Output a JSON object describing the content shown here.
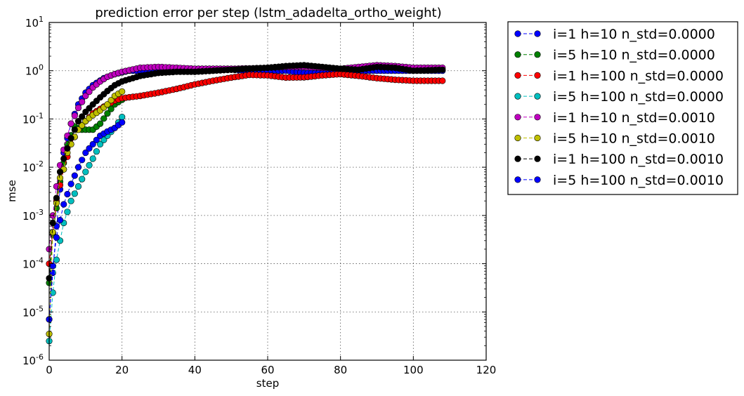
{
  "chart_data": {
    "type": "line",
    "title": "prediction error per step (lstm_adadelta_ortho_weight)",
    "xlabel": "step",
    "ylabel": "mse",
    "xlim": [
      0,
      120
    ],
    "ylim": [
      1e-06,
      10
    ],
    "yscale": "log",
    "grid": true,
    "legend_position": "outside-right",
    "x_ticks": [
      "0",
      "20",
      "40",
      "60",
      "80",
      "100",
      "120"
    ],
    "y_ticks": [
      {
        "base": "10",
        "exp": "1"
      },
      {
        "base": "10",
        "exp": "0"
      },
      {
        "base": "10",
        "exp": "-1"
      },
      {
        "base": "10",
        "exp": "-2"
      },
      {
        "base": "10",
        "exp": "-3"
      },
      {
        "base": "10",
        "exp": "-4"
      },
      {
        "base": "10",
        "exp": "-5"
      },
      {
        "base": "10",
        "exp": "-6"
      }
    ],
    "series": [
      {
        "name": "i=1 h=10 n_std=0.0000",
        "color": "#0000ff",
        "marker": "circle",
        "linestyle": "dashed",
        "n": 109,
        "keypoints": [
          [
            0,
            7e-06
          ],
          [
            2,
            0.0006
          ],
          [
            4,
            0.02
          ],
          [
            6,
            0.08
          ],
          [
            8,
            0.2
          ],
          [
            10,
            0.35
          ],
          [
            12,
            0.5
          ],
          [
            15,
            0.7
          ],
          [
            18,
            0.85
          ],
          [
            22,
            1.0
          ],
          [
            26,
            1.0
          ],
          [
            30,
            1.0
          ],
          [
            35,
            1.0
          ],
          [
            40,
            0.95
          ],
          [
            45,
            1.0
          ],
          [
            50,
            1.05
          ],
          [
            55,
            1.0
          ],
          [
            60,
            1.0
          ],
          [
            65,
            1.0
          ],
          [
            70,
            0.9
          ],
          [
            75,
            0.9
          ],
          [
            80,
            1.0
          ],
          [
            85,
            1.0
          ],
          [
            90,
            1.0
          ],
          [
            95,
            1.0
          ],
          [
            100,
            1.0
          ],
          [
            108,
            1.0
          ]
        ]
      },
      {
        "name": "i=5 h=10 n_std=0.0000",
        "color": "#008000",
        "marker": "circle",
        "linestyle": "dashed",
        "n": 21,
        "keypoints": [
          [
            0,
            4e-05
          ],
          [
            1,
            0.0004
          ],
          [
            3,
            0.005
          ],
          [
            5,
            0.03
          ],
          [
            7,
            0.07
          ],
          [
            9,
            0.06
          ],
          [
            11,
            0.06
          ],
          [
            12,
            0.06
          ],
          [
            14,
            0.08
          ],
          [
            16,
            0.13
          ],
          [
            18,
            0.2
          ],
          [
            20,
            0.25
          ]
        ]
      },
      {
        "name": "i=1 h=100 n_std=0.0000",
        "color": "#ff0000",
        "marker": "circle",
        "linestyle": "dashed",
        "n": 109,
        "keypoints": [
          [
            0,
            0.0001
          ],
          [
            2,
            0.002
          ],
          [
            4,
            0.009
          ],
          [
            6,
            0.03
          ],
          [
            8,
            0.06
          ],
          [
            10,
            0.09
          ],
          [
            12,
            0.13
          ],
          [
            15,
            0.18
          ],
          [
            18,
            0.24
          ],
          [
            20,
            0.27
          ],
          [
            25,
            0.3
          ],
          [
            30,
            0.35
          ],
          [
            35,
            0.42
          ],
          [
            40,
            0.52
          ],
          [
            45,
            0.62
          ],
          [
            50,
            0.72
          ],
          [
            55,
            0.82
          ],
          [
            60,
            0.8
          ],
          [
            65,
            0.72
          ],
          [
            70,
            0.73
          ],
          [
            75,
            0.8
          ],
          [
            80,
            0.85
          ],
          [
            85,
            0.78
          ],
          [
            90,
            0.7
          ],
          [
            95,
            0.65
          ],
          [
            100,
            0.62
          ],
          [
            108,
            0.62
          ]
        ]
      },
      {
        "name": "i=5 h=100 n_std=0.0000",
        "color": "#00bfbf",
        "marker": "circle",
        "linestyle": "dashed",
        "n": 21,
        "keypoints": [
          [
            0,
            2.5e-06
          ],
          [
            1,
            2.5e-05
          ],
          [
            2,
            0.00012
          ],
          [
            3,
            0.0003
          ],
          [
            4,
            0.0007
          ],
          [
            6,
            0.002
          ],
          [
            8,
            0.004
          ],
          [
            10,
            0.008
          ],
          [
            12,
            0.015
          ],
          [
            14,
            0.03
          ],
          [
            16,
            0.045
          ],
          [
            18,
            0.065
          ],
          [
            20,
            0.11
          ]
        ]
      },
      {
        "name": "i=1 h=10 n_std=0.0010",
        "color": "#bf00bf",
        "marker": "circle",
        "linestyle": "dashed",
        "n": 109,
        "keypoints": [
          [
            0,
            0.0002
          ],
          [
            1,
            0.001
          ],
          [
            2,
            0.004
          ],
          [
            3,
            0.011
          ],
          [
            4,
            0.023
          ],
          [
            5,
            0.045
          ],
          [
            6,
            0.08
          ],
          [
            8,
            0.17
          ],
          [
            10,
            0.3
          ],
          [
            12,
            0.45
          ],
          [
            14,
            0.6
          ],
          [
            16,
            0.75
          ],
          [
            18,
            0.85
          ],
          [
            20,
            0.95
          ],
          [
            25,
            1.15
          ],
          [
            30,
            1.2
          ],
          [
            35,
            1.15
          ],
          [
            40,
            1.1
          ],
          [
            45,
            1.1
          ],
          [
            50,
            1.1
          ],
          [
            55,
            1.12
          ],
          [
            60,
            1.15
          ],
          [
            65,
            1.2
          ],
          [
            70,
            1.2
          ],
          [
            75,
            1.15
          ],
          [
            80,
            1.1
          ],
          [
            85,
            1.2
          ],
          [
            90,
            1.3
          ],
          [
            95,
            1.25
          ],
          [
            100,
            1.15
          ],
          [
            108,
            1.15
          ]
        ]
      },
      {
        "name": "i=5 h=10 n_std=0.0010",
        "color": "#bfbf00",
        "marker": "circle",
        "linestyle": "dashed",
        "n": 21,
        "keypoints": [
          [
            0,
            3.5e-06
          ],
          [
            1,
            0.00045
          ],
          [
            2,
            0.0018
          ],
          [
            3,
            0.006
          ],
          [
            4,
            0.009
          ],
          [
            5,
            0.02
          ],
          [
            6,
            0.03
          ],
          [
            8,
            0.06
          ],
          [
            10,
            0.09
          ],
          [
            12,
            0.12
          ],
          [
            14,
            0.15
          ],
          [
            16,
            0.2
          ],
          [
            18,
            0.3
          ],
          [
            20,
            0.37
          ]
        ]
      },
      {
        "name": "i=1 h=100 n_std=0.0010",
        "color": "#000000",
        "marker": "circle",
        "linestyle": "dashed",
        "n": 109,
        "keypoints": [
          [
            0,
            5e-05
          ],
          [
            1,
            0.0007
          ],
          [
            2,
            0.0023
          ],
          [
            3,
            0.008
          ],
          [
            4,
            0.015
          ],
          [
            6,
            0.04
          ],
          [
            8,
            0.09
          ],
          [
            10,
            0.14
          ],
          [
            12,
            0.2
          ],
          [
            14,
            0.28
          ],
          [
            16,
            0.38
          ],
          [
            18,
            0.5
          ],
          [
            20,
            0.6
          ],
          [
            25,
            0.78
          ],
          [
            30,
            0.9
          ],
          [
            35,
            0.95
          ],
          [
            40,
            0.95
          ],
          [
            45,
            1.0
          ],
          [
            50,
            1.05
          ],
          [
            55,
            1.1
          ],
          [
            60,
            1.15
          ],
          [
            65,
            1.25
          ],
          [
            70,
            1.3
          ],
          [
            75,
            1.2
          ],
          [
            80,
            1.1
          ],
          [
            85,
            1.05
          ],
          [
            90,
            1.2
          ],
          [
            95,
            1.15
          ],
          [
            100,
            1.0
          ],
          [
            108,
            1.05
          ]
        ]
      },
      {
        "name": "i=5 h=100 n_std=0.0010",
        "color": "#0000ff",
        "marker": "circle",
        "linestyle": "dashed",
        "n": 21,
        "keypoints": [
          [
            0,
            7e-06
          ],
          [
            1,
            9e-05
          ],
          [
            2,
            0.00035
          ],
          [
            3,
            0.0008
          ],
          [
            4,
            0.0017
          ],
          [
            6,
            0.0045
          ],
          [
            8,
            0.01
          ],
          [
            10,
            0.02
          ],
          [
            12,
            0.03
          ],
          [
            14,
            0.045
          ],
          [
            16,
            0.055
          ],
          [
            18,
            0.065
          ],
          [
            20,
            0.085
          ]
        ]
      }
    ]
  }
}
